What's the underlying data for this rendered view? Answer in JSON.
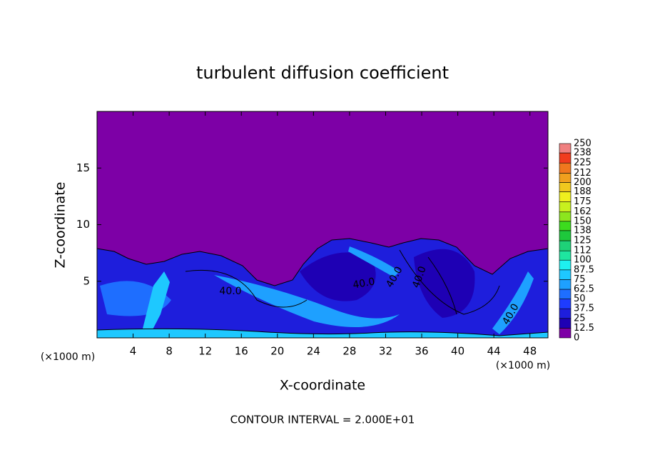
{
  "chart_data": {
    "type": "contour",
    "title": "turbulent diffusion coefficient",
    "x_label": "X-coordinate",
    "y_label": "Z-coordinate",
    "x_unit_labels": [
      "(×1000 m)",
      "(×1000 m)"
    ],
    "xlim": [
      0,
      50
    ],
    "xticks": [
      4,
      8,
      12,
      16,
      20,
      24,
      28,
      32,
      36,
      40,
      44,
      48
    ],
    "ylim": [
      0,
      20
    ],
    "yticks": [
      5,
      10,
      15
    ],
    "footer": "CONTOUR INTERVAL = 2.000E+01",
    "contour_labels": [
      "40.0",
      "40.0",
      "40.0",
      "40.0",
      "40.0"
    ],
    "colorbar": {
      "levels": [
        0,
        12.5,
        25,
        37.5,
        50,
        62.5,
        75,
        87.5,
        100,
        112,
        125,
        138,
        150,
        162,
        175,
        188,
        200,
        212,
        225,
        238,
        250
      ],
      "colors": [
        "#7d00a6",
        "#1e00b4",
        "#1e1edc",
        "#1e3cff",
        "#1e6eff",
        "#1ea0ff",
        "#1ec8ff",
        "#1ef0f0",
        "#1ee6a0",
        "#1ed278",
        "#1ec83c",
        "#3cdc1e",
        "#8ce61e",
        "#c8f01e",
        "#f0f01e",
        "#f0c81e",
        "#f0a01e",
        "#f0781e",
        "#f03c1e",
        "#f08080"
      ]
    }
  }
}
